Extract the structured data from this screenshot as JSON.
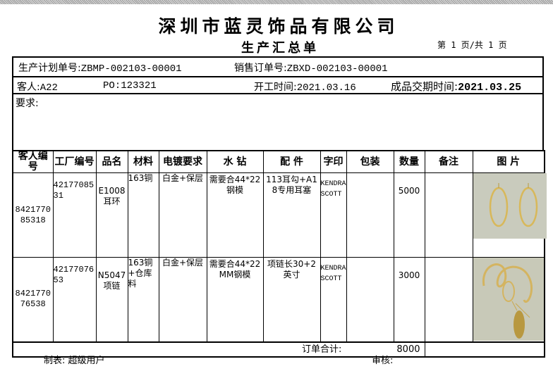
{
  "header": {
    "company": "深圳市蓝灵饰品有限公司",
    "title": "生产汇总单",
    "page_info": "第 1 页/共 1 页"
  },
  "info": {
    "plan_no_label": "生产计划单号:",
    "plan_no": "ZBMP-002103-00001",
    "sales_no_label": "销售订单号:",
    "sales_no": "ZBXD-002103-00001",
    "customer_label": "客人:",
    "customer": "A22",
    "po_label": "PO:",
    "po": "123321",
    "start_label": "开工时间:",
    "start": "2021.03.16",
    "delivery_label": "成品交期时间:",
    "delivery": "2021.03.25",
    "requirements_label": "要求:"
  },
  "table": {
    "columns": [
      "客人编号",
      "工厂编号",
      "品名",
      "材料",
      "电镀要求",
      "水 钻",
      "配 件",
      "字印",
      "包装",
      "数量",
      "备注",
      "图 片"
    ],
    "rows": [
      {
        "customer_no": "842177085318",
        "factory_no": "4217708531",
        "name": "E1008耳环",
        "material": "163铜",
        "plating": "白金+保层",
        "stone": "需要合44*22钢模",
        "parts": "113耳勾+A18专用耳塞",
        "stamp": "KENDRA SCOTT",
        "packing": "",
        "qty": "5000",
        "remark": "",
        "image": "earrings-photo"
      },
      {
        "customer_no": "842177076538",
        "factory_no": "4217707653",
        "name": "N5047项链",
        "material": "163铜+仓库料",
        "plating": "白金+保层",
        "stone": "需要合44*22MM钢模",
        "parts": "项链长30+2英寸",
        "stamp": "KENDRA SCOTT",
        "packing": "",
        "qty": "3000",
        "remark": "",
        "image": "necklace-photo"
      }
    ],
    "total_label": "订单合计:",
    "total": "8000"
  },
  "footer": {
    "maker_label": "制表:",
    "maker": "超级用户",
    "review_label": "审核:"
  }
}
